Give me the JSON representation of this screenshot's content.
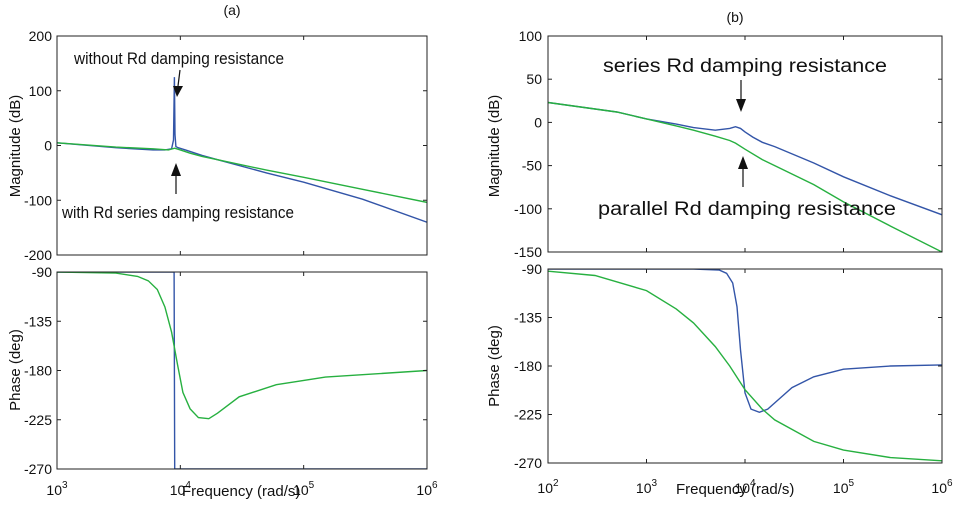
{
  "colors": {
    "blue": "#3355a8",
    "green": "#27b040"
  },
  "chart_data": [
    {
      "panel": "(a)",
      "type": "line",
      "xscale": "log",
      "xlim": [
        1000,
        1000000
      ],
      "x_ticks": [
        1000,
        10000,
        100000,
        1000000
      ],
      "xlabel": "Frequency  (rad/s)",
      "magnitude": {
        "ylabel": "Magnitude (dB)",
        "ylim": [
          -200,
          200
        ],
        "y_ticks": [
          -200,
          -100,
          0,
          100,
          200
        ],
        "series": [
          {
            "color": "blue",
            "x": [
              1000,
              3000,
              6000,
              7500,
              8500,
              8800,
              8950,
              9050,
              9200,
              9600,
              11000,
              15000,
              20000,
              50000,
              100000,
              300000,
              1000000
            ],
            "y": [
              5,
              -4,
              -8,
              -8,
              -6,
              10,
              125,
              20,
              -2,
              -4,
              -8,
              -18,
              -26,
              -50,
              -67,
              -98,
              -140
            ]
          },
          {
            "color": "green",
            "x": [
              1000,
              3000,
              6000,
              8000,
              9000,
              10000,
              12000,
              15000,
              20000,
              50000,
              100000,
              300000,
              1000000
            ],
            "y": [
              5,
              -3,
              -6,
              -8,
              -5,
              -8,
              -14,
              -20,
              -26,
              -45,
              -58,
              -80,
              -104
            ]
          }
        ],
        "annotations": [
          {
            "text": "without Rd damping resistance"
          },
          {
            "text": "with Rd series damping resistance"
          }
        ]
      },
      "phase": {
        "ylabel": "Phase (deg)",
        "ylim": [
          -270,
          -90
        ],
        "y_ticks": [
          -270,
          -225,
          -180,
          -135,
          -90
        ],
        "series": [
          {
            "color": "blue",
            "x": [
              1000,
              8900,
              9000,
              1000000
            ],
            "y": [
              -90,
              -90,
              -270,
              -270
            ]
          },
          {
            "color": "green",
            "x": [
              1000,
              3000,
              4500,
              5500,
              6500,
              7500,
              8500,
              9500,
              10500,
              12000,
              14000,
              17000,
              20000,
              30000,
              60000,
              150000,
              1000000
            ],
            "y": [
              -90,
              -91,
              -94,
              -98,
              -106,
              -122,
              -145,
              -175,
              -200,
              -215,
              -223,
              -224,
              -219,
              -204,
              -193,
              -186,
              -180
            ]
          }
        ]
      }
    },
    {
      "panel": "(b)",
      "type": "line",
      "xscale": "log",
      "xlim": [
        100,
        1000000
      ],
      "x_ticks": [
        100,
        1000,
        10000,
        100000,
        1000000
      ],
      "xlabel": "Frequency  (rad/s)",
      "magnitude": {
        "ylabel": "Magnitude (dB)",
        "ylim": [
          -150,
          100
        ],
        "y_ticks": [
          -150,
          -100,
          -50,
          0,
          50,
          100
        ],
        "series": [
          {
            "color": "blue",
            "x": [
              100,
              500,
              1000,
              2000,
              3000,
              5000,
              7000,
              8000,
              9000,
              10000,
              12000,
              15000,
              20000,
              50000,
              100000,
              300000,
              1000000
            ],
            "y": [
              23,
              12,
              4,
              -2,
              -6,
              -9,
              -7,
              -5,
              -7,
              -11,
              -17,
              -23,
              -28,
              -47,
              -63,
              -85,
              -107
            ]
          },
          {
            "color": "green",
            "x": [
              100,
              500,
              1000,
              2000,
              3000,
              5000,
              7000,
              8000,
              10000,
              15000,
              20000,
              50000,
              100000,
              300000,
              1000000
            ],
            "y": [
              23,
              12,
              4,
              -4,
              -9,
              -16,
              -21,
              -24,
              -31,
              -43,
              -50,
              -72,
              -92,
              -120,
              -150
            ]
          }
        ],
        "annotations": [
          {
            "text": "series Rd damping resistance"
          },
          {
            "text": "parallel Rd damping resistance"
          }
        ]
      },
      "phase": {
        "ylabel": "Phase (deg)",
        "ylim": [
          -270,
          -90
        ],
        "y_ticks": [
          -270,
          -225,
          -180,
          -135,
          -90
        ],
        "series": [
          {
            "color": "blue",
            "x": [
              100,
              3000,
              5500,
              6500,
              7500,
              8300,
              9000,
              10000,
              11500,
              14000,
              17000,
              22000,
              30000,
              50000,
              100000,
              300000,
              1000000
            ],
            "y": [
              -90,
              -90,
              -91,
              -94,
              -103,
              -125,
              -165,
              -205,
              -220,
              -223,
              -220,
              -211,
              -200,
              -190,
              -183,
              -180,
              -179
            ]
          },
          {
            "color": "green",
            "x": [
              100,
              300,
              1000,
              2000,
              3000,
              5000,
              7000,
              10000,
              15000,
              20000,
              50000,
              100000,
              300000,
              1000000
            ],
            "y": [
              -92,
              -96,
              -110,
              -127,
              -140,
              -162,
              -180,
              -202,
              -220,
              -230,
              -250,
              -258,
              -265,
              -268
            ]
          }
        ]
      }
    }
  ]
}
